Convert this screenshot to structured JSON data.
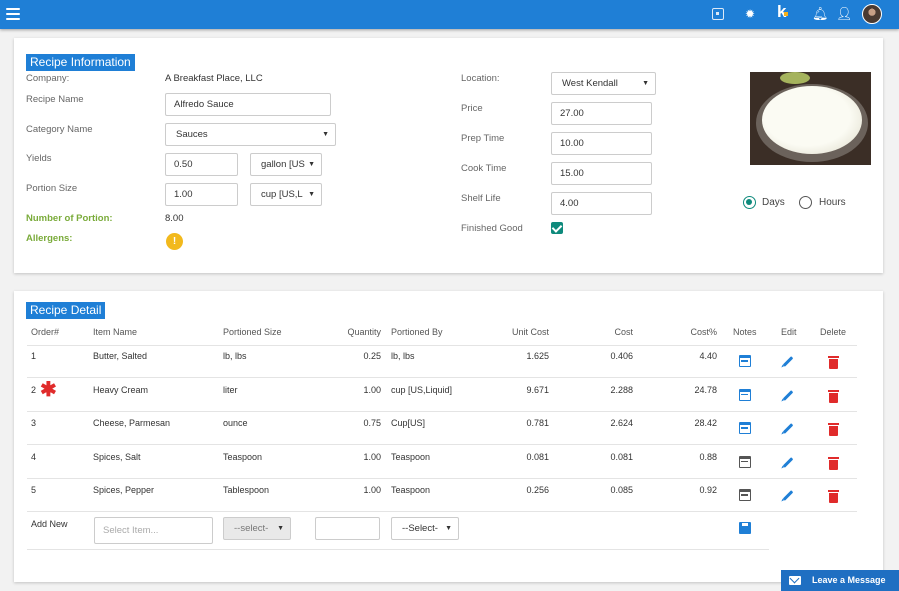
{
  "colors": {
    "header": "#1f7fd6",
    "accent_green": "#7aab3a",
    "check_teal": "#0e8a7c",
    "delete_red": "#e02b2b"
  },
  "header": {
    "menu_icon": "hamburger-icon",
    "icons": [
      "scan-icon",
      "gear-icon",
      "k-logo-icon",
      "bell-icon",
      "user-icon",
      "avatar"
    ]
  },
  "recipe_info": {
    "title": "Recipe Information",
    "company_label": "Company:",
    "company_value": "A Breakfast Place, LLC",
    "recipe_name_label": "Recipe Name",
    "recipe_name_value": "Alfredo Sauce",
    "category_label": "Category Name",
    "category_value": "Sauces",
    "yields_label": "Yields",
    "yields_value": "0.50",
    "yields_unit": "gallon [US",
    "portion_label": "Portion Size",
    "portion_value": "1.00",
    "portion_unit": "cup [US,L",
    "num_portion_label": "Number of Portion:",
    "num_portion_value": "8.00",
    "allergens_label": "Allergens:",
    "allergen_glyph": "!",
    "location_label": "Location:",
    "location_value": "West Kendall",
    "price_label": "Price",
    "price_value": "27.00",
    "prep_label": "Prep Time",
    "prep_value": "10.00",
    "cook_label": "Cook Time",
    "cook_value": "15.00",
    "shelf_label": "Shelf Life",
    "shelf_value": "4.00",
    "finished_label": "Finished Good",
    "finished_checked": true,
    "days_label": "Days",
    "hours_label": "Hours",
    "shelf_unit_selected": "Days"
  },
  "recipe_detail": {
    "title": "Recipe Detail",
    "columns": [
      "Order#",
      "Item Name",
      "Portioned Size",
      "Quantity",
      "Portioned By",
      "Unit Cost",
      "Cost",
      "Cost%",
      "Notes",
      "Edit",
      "Delete"
    ],
    "rows": [
      {
        "order": "1",
        "item": "Butter, Salted",
        "size": "lb, lbs",
        "qty": "0.25",
        "by": "lb, lbs",
        "unit_cost": "1.625",
        "cost": "0.406",
        "pct": "4.40",
        "notes": "blue",
        "flag": false
      },
      {
        "order": "2",
        "item": "Heavy Cream",
        "size": "liter",
        "qty": "1.00",
        "by": "cup [US,Liquid]",
        "unit_cost": "9.671",
        "cost": "2.288",
        "pct": "24.78",
        "notes": "blue",
        "flag": true
      },
      {
        "order": "3",
        "item": "Cheese, Parmesan",
        "size": "ounce",
        "qty": "0.75",
        "by": "Cup[US]",
        "unit_cost": "0.781",
        "cost": "2.624",
        "pct": "28.42",
        "notes": "blue",
        "flag": false
      },
      {
        "order": "4",
        "item": "Spices, Salt",
        "size": "Teaspoon",
        "qty": "1.00",
        "by": "Teaspoon",
        "unit_cost": "0.081",
        "cost": "0.081",
        "pct": "0.88",
        "notes": "grey",
        "flag": false
      },
      {
        "order": "5",
        "item": "Spices, Pepper",
        "size": "Tablespoon",
        "qty": "1.00",
        "by": "Teaspoon",
        "unit_cost": "0.256",
        "cost": "0.085",
        "pct": "0.92",
        "notes": "grey",
        "flag": false
      }
    ],
    "add_new_label": "Add New",
    "select_item_placeholder": "Select Item...",
    "select_size": "--select-",
    "select_by": "--Select-"
  },
  "chat": {
    "label": "Leave a Message"
  }
}
